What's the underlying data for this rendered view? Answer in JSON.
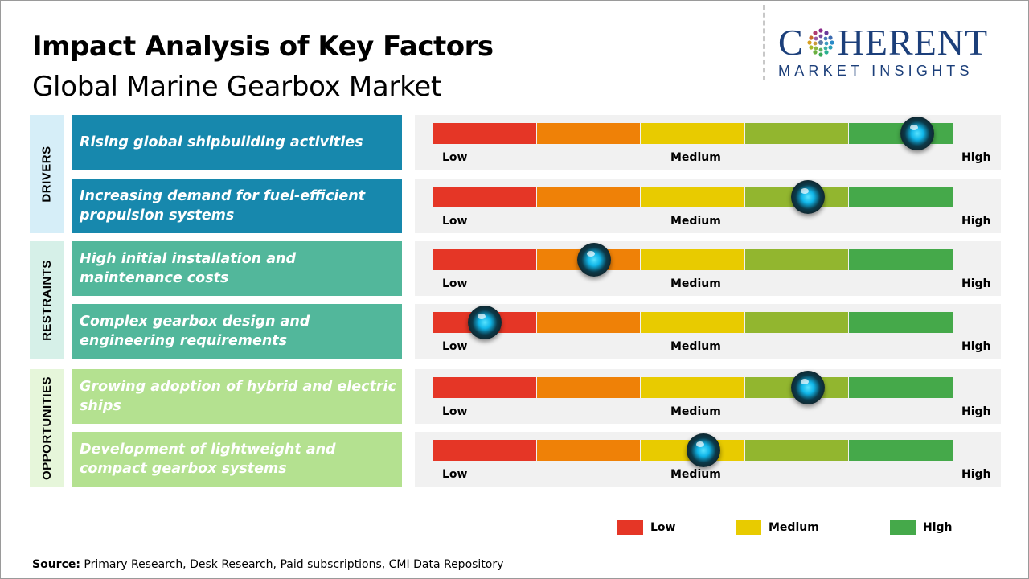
{
  "header": {
    "title": "Impact Analysis of Key Factors",
    "subtitle": "Global Marine Gearbox Market"
  },
  "logo": {
    "top": "C   HERENT",
    "bottom": "MARKET INSIGHTS"
  },
  "colors": {
    "drivers_box": "#1788ad",
    "restraints_box": "#52b79b",
    "opportunities_box": "#b4e190",
    "drivers_tab": "#d6eef8",
    "restraints_tab": "#d6f0e8",
    "opportunities_tab": "#e6f6da",
    "low": "#e53626",
    "low_mid": "#ef8107",
    "medium": "#e8cb00",
    "mid_high": "#92b62f",
    "high": "#45a94a"
  },
  "chart_data": {
    "type": "gauge",
    "scale_labels": [
      "Low",
      "Medium",
      "High"
    ],
    "categories": [
      {
        "name": "DRIVERS",
        "factors": [
          {
            "label": "Rising global shipbuilding activities",
            "impact": 0.93
          },
          {
            "label": "Increasing demand for fuel-efficient propulsion systems",
            "impact": 0.72
          }
        ]
      },
      {
        "name": "RESTRAINTS",
        "factors": [
          {
            "label": "High initial installation and maintenance costs",
            "impact": 0.31
          },
          {
            "label": "Complex gearbox design and engineering requirements",
            "impact": 0.1
          }
        ]
      },
      {
        "name": "OPPORTUNITIES",
        "factors": [
          {
            "label": "Growing adoption of hybrid and electric ships",
            "impact": 0.72
          },
          {
            "label": "Development of lightweight and compact gearbox systems",
            "impact": 0.52
          }
        ]
      }
    ],
    "legend": [
      {
        "label": "Low",
        "color": "#e53626"
      },
      {
        "label": "Medium",
        "color": "#e8cb00"
      },
      {
        "label": "High",
        "color": "#45a94a"
      }
    ]
  },
  "source": {
    "label": "Source:",
    "text": " Primary Research, Desk Research, Paid subscriptions, CMI Data Repository"
  }
}
